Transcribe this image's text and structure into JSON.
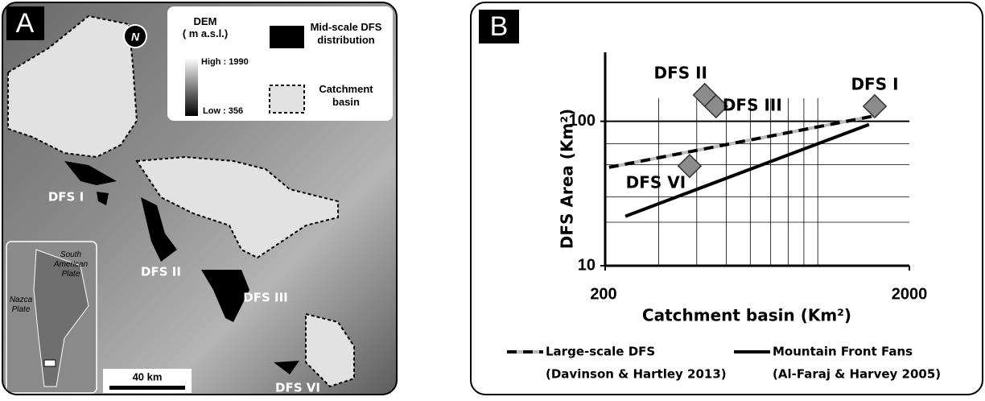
{
  "map": {
    "label": "A",
    "north": "N",
    "legend": {
      "dem_title": [
        "DEM",
        "( m a.s.l.)"
      ],
      "dem_high": "High : 1990",
      "dem_low": "Low : 356",
      "dfs": [
        "Mid-scale DFS",
        "distribution"
      ],
      "catchment": [
        "Catchment",
        "basin"
      ]
    },
    "scale_bar": "40 km",
    "inset": {
      "south_american_plate": [
        "South",
        "American",
        "Plate"
      ],
      "nazca_plate": [
        "Nazca",
        "Plate"
      ]
    },
    "dfs_labels": [
      "DFS I",
      "DFS II",
      "DFS III",
      "DFS VI"
    ]
  },
  "chart_data": {
    "type": "scatter",
    "label": "B",
    "xlabel": "Catchment basin (Km²)",
    "ylabel": "DFS Area (Km²)",
    "xscale": "log",
    "yscale": "log",
    "xlim": [
      200,
      2000
    ],
    "ylim": [
      10,
      300
    ],
    "xticks": [
      200,
      2000
    ],
    "yticks": [
      10,
      100
    ],
    "xticks_minor": [
      300,
      400,
      500,
      600,
      700,
      800,
      900,
      1000
    ],
    "yticks_minor": [
      20,
      30,
      50,
      70
    ],
    "grid": true,
    "points": {
      "names": [
        "DFS I",
        "DFS II",
        "DFS III",
        "DFS VI"
      ],
      "color": "#8c8c8c",
      "x": [
        1539,
        425,
        463,
        379
      ],
      "values": [
        127,
        152,
        127,
        49
      ]
    },
    "series": [
      {
        "name": "Large-scale DFS",
        "source": "(Davinson & Hartley 2013)",
        "color": "#000000",
        "style": "dashed",
        "x": [
          206,
          1539
        ],
        "values": [
          48,
          109
        ]
      },
      {
        "name": "Mountain Front Fans",
        "source": "(Al-Faraj & Harvey 2005)",
        "color": "#000000",
        "style": "solid",
        "x": [
          233,
          1474
        ],
        "values": [
          22,
          95
        ]
      }
    ]
  }
}
